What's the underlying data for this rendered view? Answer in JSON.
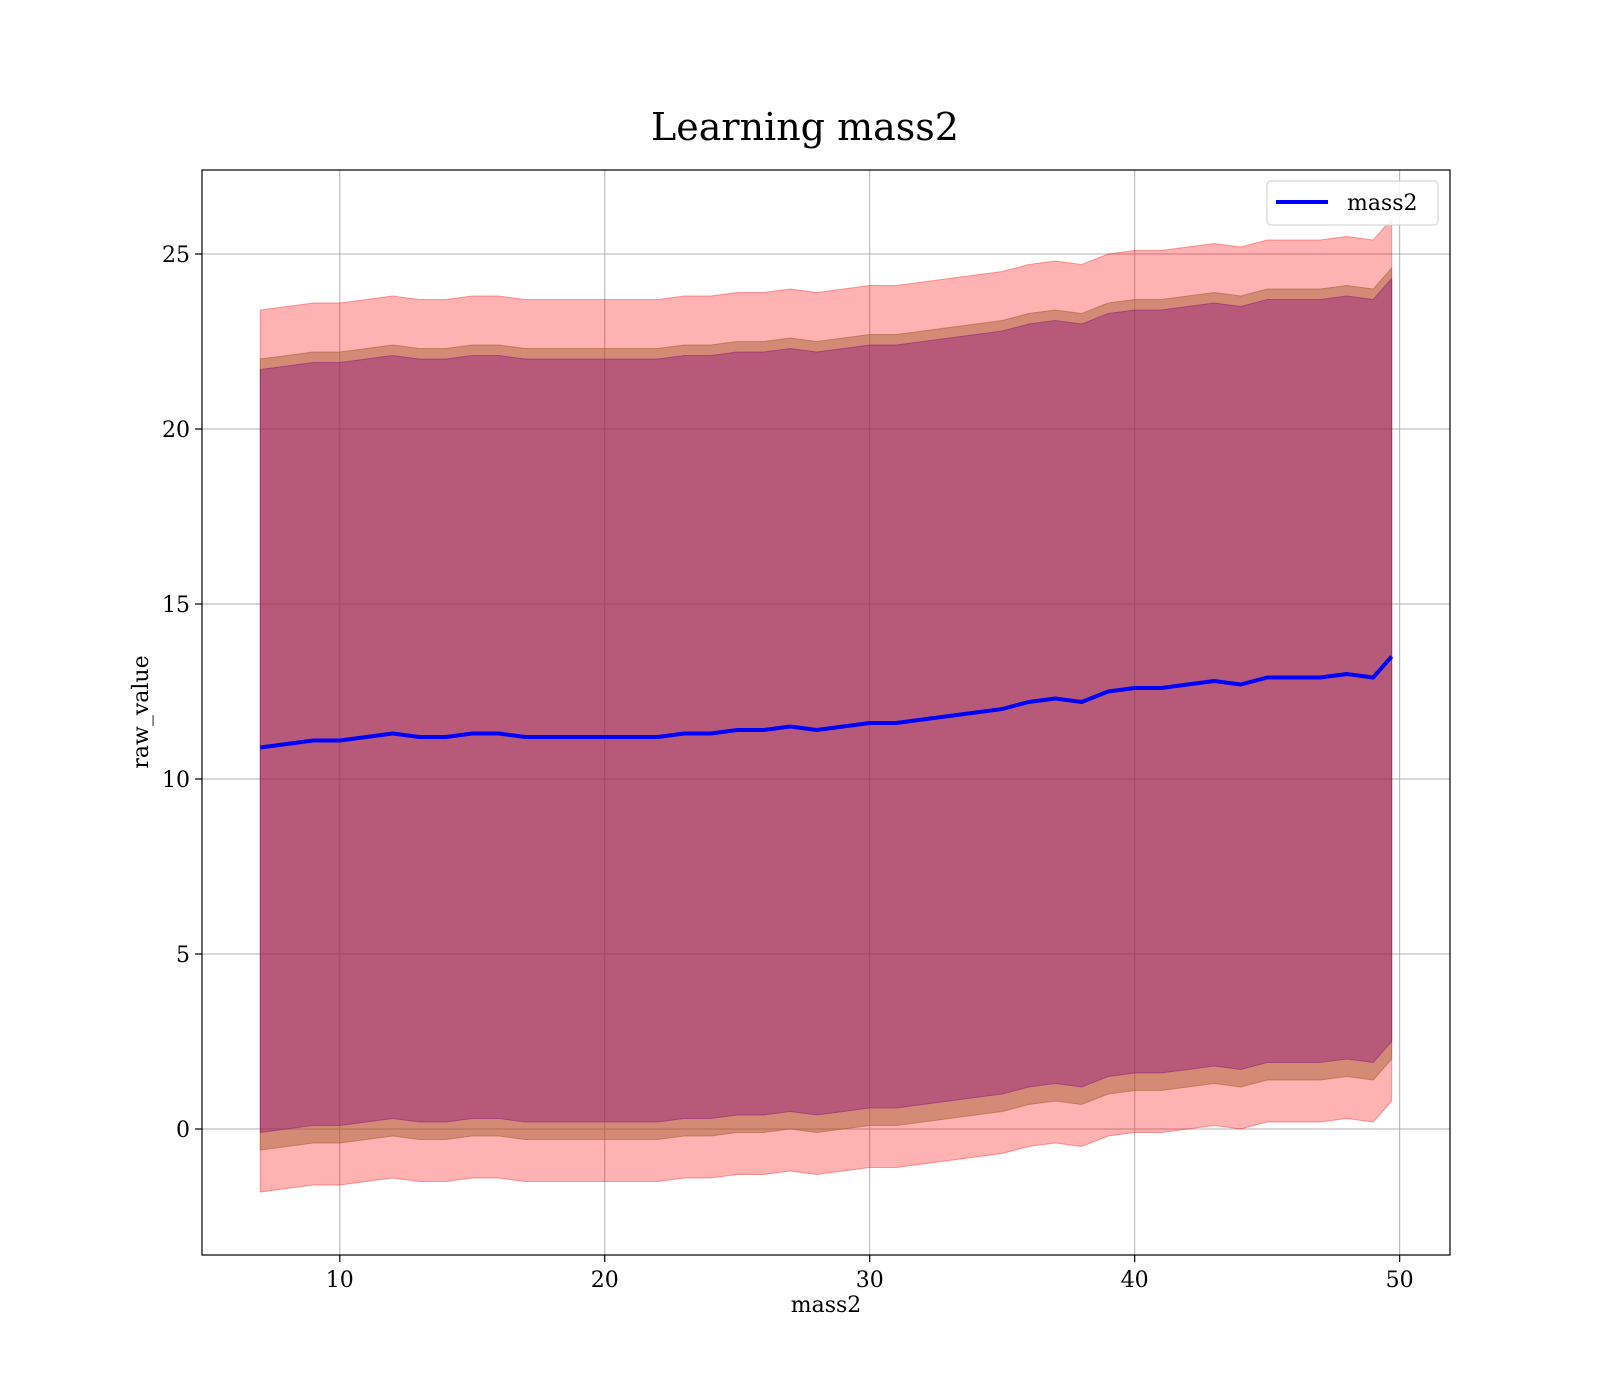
{
  "chart_data": {
    "type": "line",
    "title": "Learning mass2",
    "xlabel": "mass2",
    "ylabel": "raw_value",
    "xlim": [
      4.8,
      51.9
    ],
    "ylim": [
      -3.6,
      27.4
    ],
    "xticks": [
      10,
      20,
      30,
      40,
      50
    ],
    "yticks": [
      0,
      5,
      10,
      15,
      20,
      25
    ],
    "grid": true,
    "legend": {
      "position": "upper right",
      "entries": [
        "mass2"
      ]
    },
    "colors": {
      "line": "#0000ff",
      "band_outer": "#ff0000",
      "band_middle": "#a05a2c",
      "band_inner": "#800080",
      "grid": "#b0b0b0"
    },
    "series": [
      {
        "name": "mass2",
        "x": [
          7,
          8,
          9,
          10,
          11,
          12,
          13,
          14,
          15,
          16,
          17,
          18,
          19,
          20,
          21,
          22,
          23,
          24,
          25,
          26,
          27,
          28,
          29,
          30,
          31,
          32,
          33,
          34,
          35,
          36,
          37,
          38,
          39,
          40,
          41,
          42,
          43,
          44,
          45,
          46,
          47,
          48,
          49,
          49.7
        ],
        "y": [
          10.9,
          11.0,
          11.1,
          11.1,
          11.2,
          11.3,
          11.2,
          11.2,
          11.3,
          11.3,
          11.2,
          11.2,
          11.2,
          11.2,
          11.2,
          11.2,
          11.3,
          11.3,
          11.4,
          11.4,
          11.5,
          11.4,
          11.5,
          11.6,
          11.6,
          11.7,
          11.8,
          11.9,
          12.0,
          12.2,
          12.3,
          12.2,
          12.5,
          12.6,
          12.6,
          12.7,
          12.8,
          12.7,
          12.9,
          12.9,
          12.9,
          13.0,
          12.9,
          13.5
        ]
      }
    ],
    "bands": [
      {
        "color": "outer",
        "lower_offset": -12.7,
        "upper_offset": 12.5
      },
      {
        "color": "middle",
        "lower_offset": -11.5,
        "upper_offset": 11.1
      },
      {
        "color": "inner",
        "lower_offset": -11.0,
        "upper_offset": 10.8
      }
    ]
  }
}
